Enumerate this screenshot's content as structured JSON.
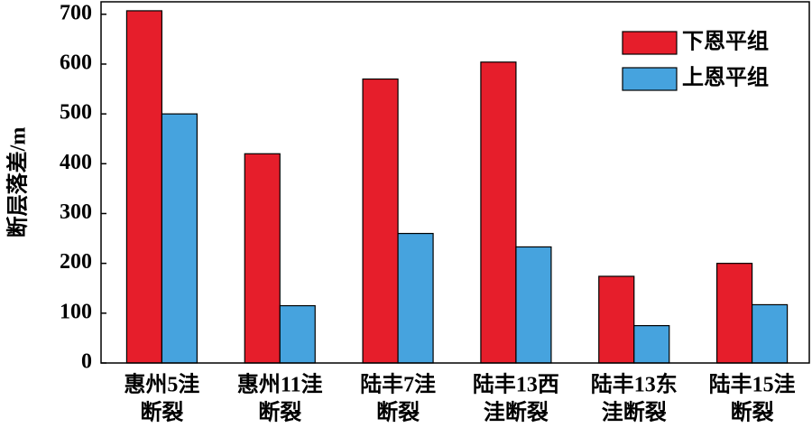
{
  "chart_data": {
    "type": "bar",
    "y_label": "断层落差/m",
    "categories": [
      [
        "惠州5洼",
        "断裂"
      ],
      [
        "惠州11洼",
        "断裂"
      ],
      [
        "陆丰7洼",
        "断裂"
      ],
      [
        "陆丰13西",
        "洼断裂"
      ],
      [
        "陆丰13东",
        "洼断裂"
      ],
      [
        "陆丰15洼",
        "断裂"
      ]
    ],
    "series": [
      {
        "name": "下恩平组",
        "color": "#e61e2b",
        "values": [
          707,
          420,
          570,
          604,
          174,
          200
        ]
      },
      {
        "name": "上恩平组",
        "color": "#46a3de",
        "values": [
          500,
          115,
          260,
          233,
          75,
          117
        ]
      }
    ],
    "ylim": [
      0,
      725
    ],
    "yticks": [
      0,
      100,
      200,
      300,
      400,
      500,
      600,
      700
    ],
    "legend": "top-right"
  }
}
